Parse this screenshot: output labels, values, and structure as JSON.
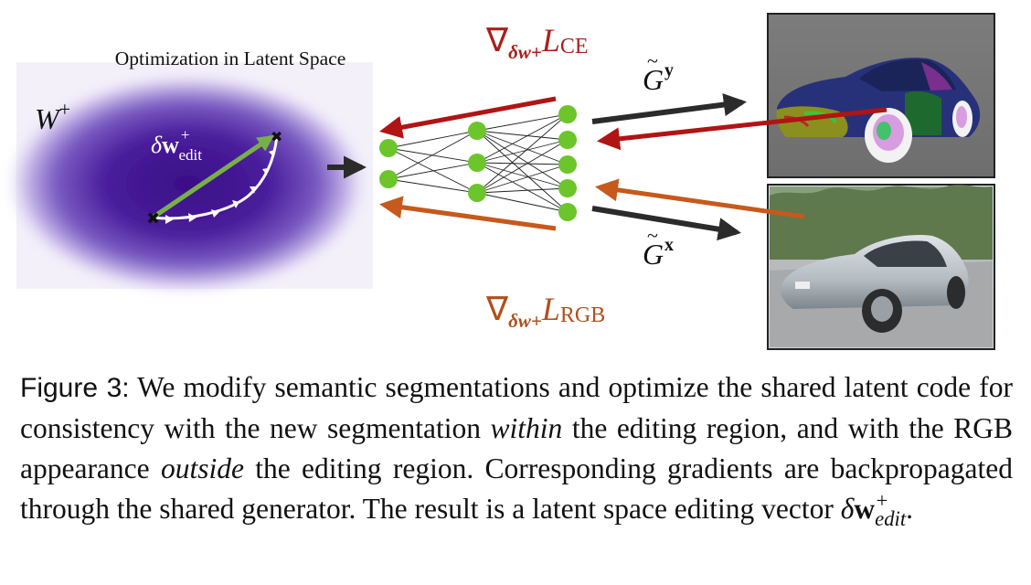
{
  "figure": {
    "latent_title": "Optimization in Latent Space",
    "space_label_main": "W",
    "space_label_sup": "+",
    "edit_vector_label": {
      "delta": "δ",
      "w": "w",
      "sup": "+",
      "sub": "edit"
    },
    "grad_ce": {
      "nabla": "∇",
      "sub": "δw+",
      "loss": "L",
      "loss_sub": "CE"
    },
    "grad_rgb": {
      "nabla": "∇",
      "sub": "δw+",
      "loss": "L",
      "loss_sub": "RGB"
    },
    "gen_y": {
      "letter": "G",
      "tilde": "~",
      "sup": "y"
    },
    "gen_x": {
      "letter": "G",
      "tilde": "~",
      "sup": "x"
    },
    "colors": {
      "latent_blob": "#4b1b9a",
      "edit_arrow": "#78b048",
      "node": "#6cc52a",
      "arrow_dark": "#2b2b2b",
      "arrow_red": "#b01414",
      "arrow_orange": "#c55a1c",
      "label_red": "#a8201c",
      "label_orange": "#b0501c"
    }
  },
  "caption": {
    "label": "Figure 3:",
    "text_1": "We modify semantic segmentations and optimize the shared latent code for consistency with the new segmentation",
    "italic_1": "within",
    "text_2": "the editing region, and with the RGB appearance",
    "italic_2": "outside",
    "text_3": "the editing region.  Corresponding gradients are backpropagated through the shared generator. The result is a latent space editing vector",
    "math_delta": "δ",
    "math_w": "w",
    "math_sup": "+",
    "math_sub": "edit",
    "end": "."
  }
}
